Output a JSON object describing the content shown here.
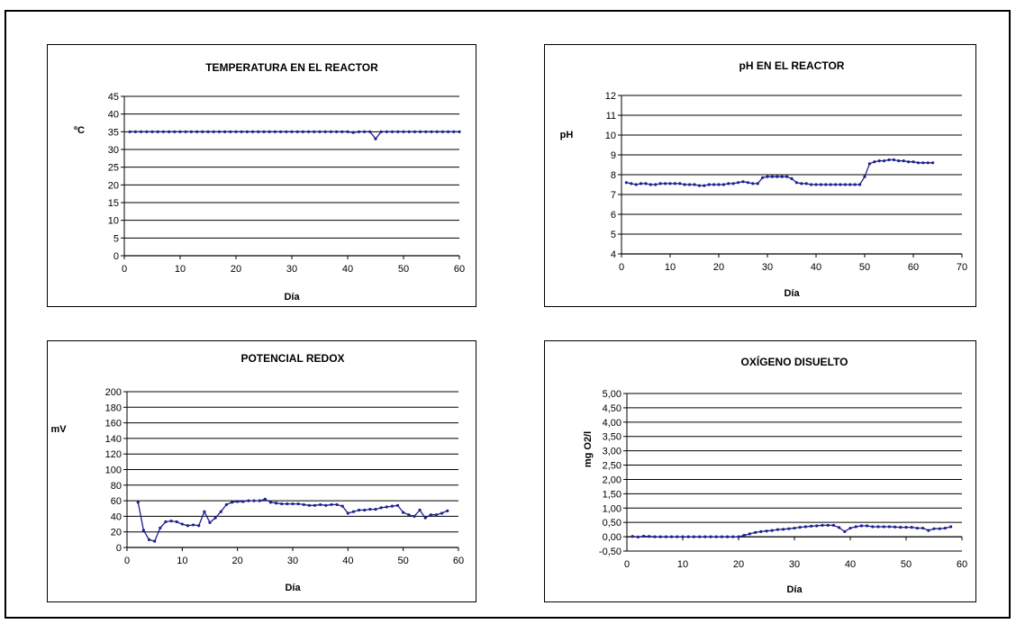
{
  "colors": {
    "line": "#1f1f8f",
    "grid": "#000000",
    "text": "#000000"
  },
  "chart_data": [
    {
      "type": "line",
      "title": "TEMPERATURA EN EL REACTOR",
      "xlabel": "Día",
      "ylabel": "ºC",
      "ylabel_orientation": "horizontal",
      "xlim": [
        0,
        60
      ],
      "ylim": [
        0,
        45
      ],
      "xticks": [
        "0",
        "10",
        "20",
        "30",
        "40",
        "50",
        "60"
      ],
      "yticks": [
        "0",
        "5",
        "10",
        "15",
        "20",
        "25",
        "30",
        "35",
        "40",
        "45"
      ],
      "grid": "horizontal",
      "series": [
        {
          "x": [
            1,
            2,
            3,
            4,
            5,
            6,
            7,
            8,
            9,
            10,
            11,
            12,
            13,
            14,
            15,
            16,
            17,
            18,
            19,
            20,
            21,
            22,
            23,
            24,
            25,
            26,
            27,
            28,
            29,
            30,
            31,
            32,
            33,
            34,
            35,
            36,
            37,
            38,
            39,
            40,
            41,
            42,
            43,
            44,
            45,
            46,
            47,
            48,
            49,
            50,
            51,
            52,
            53,
            54,
            55,
            56,
            57,
            58,
            59,
            60
          ],
          "y": [
            35,
            35,
            35,
            35,
            35,
            35,
            35,
            35,
            35,
            35,
            35,
            35,
            35,
            35,
            35,
            35,
            35,
            35,
            35,
            35,
            35,
            35,
            35,
            35,
            35,
            35,
            35,
            35,
            35,
            35,
            35,
            35,
            35,
            35,
            35,
            35,
            35,
            35,
            35,
            35,
            34.8,
            35,
            35,
            35,
            33,
            35,
            35,
            35,
            35,
            35,
            35,
            35,
            35,
            35,
            35,
            35,
            35,
            35,
            35,
            35
          ]
        }
      ]
    },
    {
      "type": "line",
      "title": "pH  EN EL REACTOR",
      "xlabel": "Día",
      "ylabel": "pH",
      "ylabel_orientation": "horizontal",
      "xlim": [
        0,
        70
      ],
      "ylim": [
        4,
        12
      ],
      "xticks": [
        "0",
        "10",
        "20",
        "30",
        "40",
        "50",
        "60",
        "70"
      ],
      "yticks": [
        "4",
        "5",
        "6",
        "7",
        "8",
        "9",
        "10",
        "11",
        "12"
      ],
      "grid": "horizontal",
      "series": [
        {
          "x": [
            1,
            2,
            3,
            4,
            5,
            6,
            7,
            8,
            9,
            10,
            11,
            12,
            13,
            14,
            15,
            16,
            17,
            18,
            19,
            20,
            21,
            22,
            23,
            24,
            25,
            26,
            27,
            28,
            29,
            30,
            31,
            32,
            33,
            34,
            35,
            36,
            37,
            38,
            39,
            40,
            41,
            42,
            43,
            44,
            45,
            46,
            47,
            48,
            49,
            50,
            51,
            52,
            53,
            54,
            55,
            56,
            57,
            58,
            59,
            60,
            61,
            62,
            63,
            64
          ],
          "y": [
            7.6,
            7.55,
            7.5,
            7.55,
            7.55,
            7.5,
            7.5,
            7.55,
            7.55,
            7.55,
            7.55,
            7.55,
            7.5,
            7.5,
            7.5,
            7.45,
            7.45,
            7.5,
            7.5,
            7.5,
            7.5,
            7.55,
            7.55,
            7.6,
            7.65,
            7.6,
            7.55,
            7.55,
            7.85,
            7.9,
            7.9,
            7.9,
            7.9,
            7.9,
            7.8,
            7.6,
            7.55,
            7.55,
            7.5,
            7.5,
            7.5,
            7.5,
            7.5,
            7.5,
            7.5,
            7.5,
            7.5,
            7.5,
            7.5,
            7.9,
            8.55,
            8.65,
            8.7,
            8.7,
            8.75,
            8.75,
            8.7,
            8.7,
            8.65,
            8.65,
            8.6,
            8.6,
            8.6,
            8.6
          ]
        }
      ]
    },
    {
      "type": "line",
      "title": "POTENCIAL REDOX",
      "xlabel": "Día",
      "ylabel": "mV",
      "ylabel_orientation": "horizontal",
      "xlim": [
        0,
        60
      ],
      "ylim": [
        0,
        200
      ],
      "xticks": [
        "0",
        "10",
        "20",
        "30",
        "40",
        "50",
        "60"
      ],
      "yticks": [
        "0",
        "20",
        "40",
        "60",
        "80",
        "100",
        "120",
        "140",
        "160",
        "180",
        "200"
      ],
      "grid": "horizontal",
      "series": [
        {
          "x": [
            2,
            3,
            4,
            5,
            6,
            7,
            8,
            9,
            10,
            11,
            12,
            13,
            14,
            15,
            16,
            17,
            18,
            19,
            20,
            21,
            22,
            23,
            24,
            25,
            26,
            27,
            28,
            29,
            30,
            31,
            32,
            33,
            34,
            35,
            36,
            37,
            38,
            39,
            40,
            41,
            42,
            43,
            44,
            45,
            46,
            47,
            48,
            49,
            50,
            51,
            52,
            53,
            54,
            55,
            56,
            57,
            58
          ],
          "y": [
            58,
            22,
            10,
            8,
            25,
            33,
            34,
            33,
            30,
            28,
            29,
            28,
            46,
            32,
            38,
            46,
            55,
            58,
            59,
            59,
            60,
            60,
            60,
            62,
            58,
            57,
            56,
            56,
            56,
            56,
            55,
            54,
            54,
            55,
            54,
            55,
            55,
            53,
            44,
            46,
            48,
            48,
            49,
            49,
            51,
            52,
            53,
            54,
            45,
            42,
            40,
            48,
            38,
            42,
            42,
            44,
            47
          ]
        }
      ]
    },
    {
      "type": "line",
      "title": "OXÍGENO DISUELTO",
      "xlabel": "Día",
      "ylabel": "mg O2/l",
      "ylabel_orientation": "vertical",
      "xlim": [
        0,
        60
      ],
      "ylim": [
        -0.5,
        5
      ],
      "xticks": [
        "0",
        "10",
        "20",
        "30",
        "40",
        "50",
        "60"
      ],
      "yticks": [
        "-0,50",
        "0,00",
        "0,50",
        "1,00",
        "1,50",
        "2,00",
        "2,50",
        "3,00",
        "3,50",
        "4,00",
        "4,50",
        "5,00"
      ],
      "grid": "horizontal",
      "series": [
        {
          "x": [
            1,
            2,
            3,
            4,
            5,
            6,
            7,
            8,
            9,
            10,
            11,
            12,
            13,
            14,
            15,
            16,
            17,
            18,
            19,
            20,
            21,
            22,
            23,
            24,
            25,
            26,
            27,
            28,
            29,
            30,
            31,
            32,
            33,
            34,
            35,
            36,
            37,
            38,
            39,
            40,
            41,
            42,
            43,
            44,
            45,
            46,
            47,
            48,
            49,
            50,
            51,
            52,
            53,
            54,
            55,
            56,
            57,
            58
          ],
          "y": [
            0.01,
            -0.01,
            0.02,
            0.01,
            0.0,
            0.0,
            0.0,
            0.0,
            0.0,
            0.0,
            0.0,
            0.0,
            0.0,
            0.0,
            0.0,
            0.0,
            0.0,
            0.0,
            0.0,
            0.0,
            0.05,
            0.1,
            0.15,
            0.18,
            0.2,
            0.22,
            0.25,
            0.26,
            0.28,
            0.3,
            0.33,
            0.35,
            0.37,
            0.38,
            0.4,
            0.4,
            0.4,
            0.32,
            0.18,
            0.3,
            0.35,
            0.38,
            0.38,
            0.35,
            0.35,
            0.35,
            0.35,
            0.34,
            0.33,
            0.33,
            0.33,
            0.3,
            0.3,
            0.22,
            0.28,
            0.28,
            0.3,
            0.35
          ]
        }
      ]
    }
  ]
}
